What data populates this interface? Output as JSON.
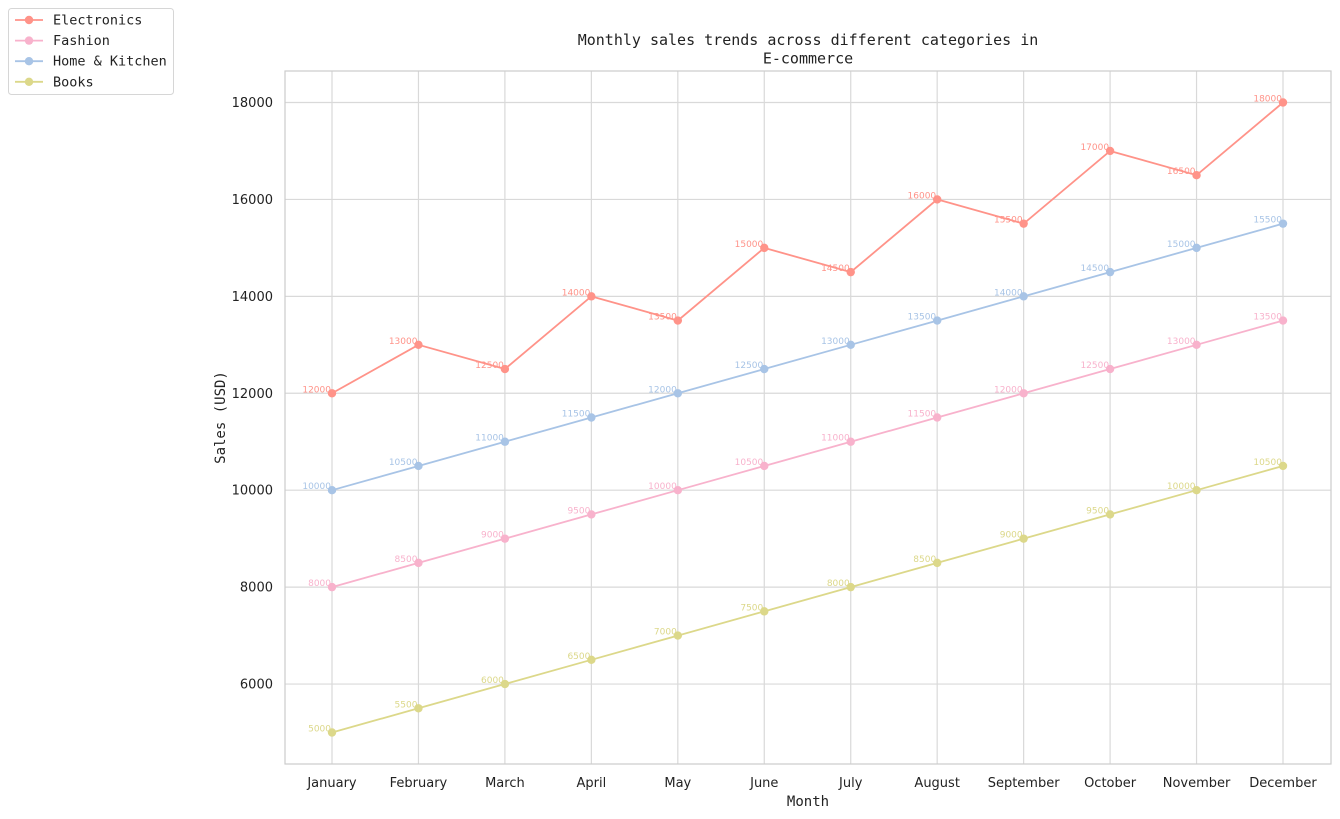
{
  "chart_data": {
    "type": "line",
    "title": "Monthly sales trends across different categories in E-commerce",
    "title_lines": [
      "Monthly sales trends across different categories in",
      "E-commerce"
    ],
    "xlabel": "Month",
    "ylabel": "Sales (USD)",
    "categories": [
      "January",
      "February",
      "March",
      "April",
      "May",
      "June",
      "July",
      "August",
      "September",
      "October",
      "November",
      "December"
    ],
    "ylim": [
      4350,
      18650
    ],
    "yticks": [
      6000,
      8000,
      10000,
      12000,
      14000,
      16000,
      18000
    ],
    "grid": true,
    "legend_position": "outside-top-left",
    "series": [
      {
        "name": "Electronics",
        "color": "#ff9389",
        "values": [
          12000,
          13000,
          12500,
          14000,
          13500,
          15000,
          14500,
          16000,
          15500,
          17000,
          16500,
          18000
        ]
      },
      {
        "name": "Fashion",
        "color": "#f8b2cc",
        "values": [
          8000,
          8500,
          9000,
          9500,
          10000,
          10500,
          11000,
          11500,
          12000,
          12500,
          13000,
          13500
        ]
      },
      {
        "name": "Home & Kitchen",
        "color": "#a8c4e6",
        "values": [
          10000,
          10500,
          11000,
          11500,
          12000,
          12500,
          13000,
          13500,
          14000,
          14500,
          15000,
          15500
        ]
      },
      {
        "name": "Books",
        "color": "#dcd88a",
        "values": [
          5000,
          5500,
          6000,
          6500,
          7000,
          7500,
          8000,
          8500,
          9000,
          9500,
          10000,
          10500
        ]
      }
    ]
  }
}
